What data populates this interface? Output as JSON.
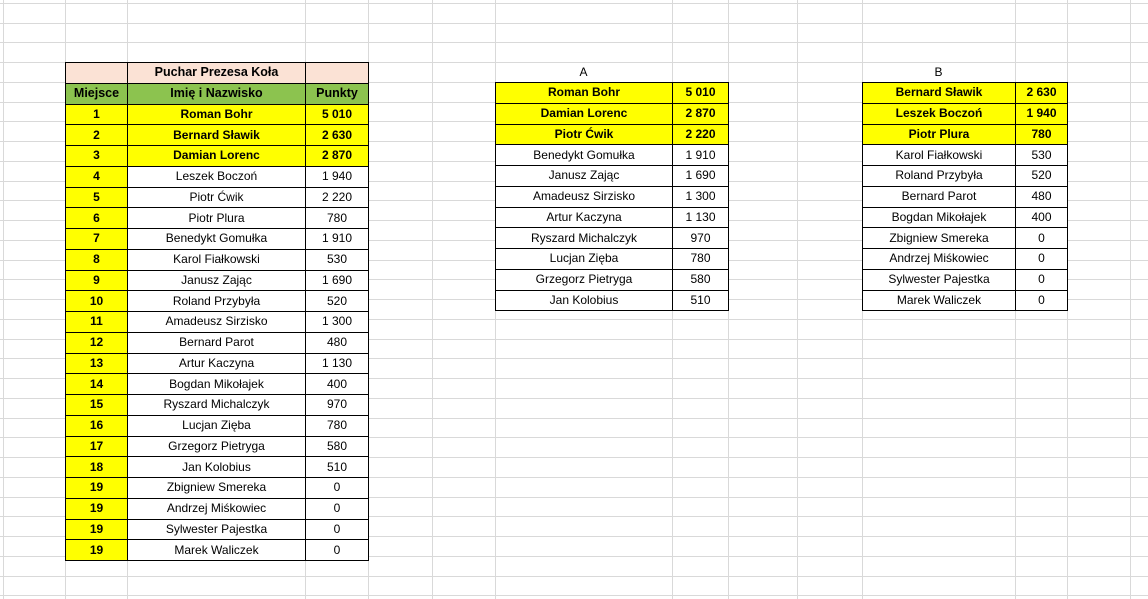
{
  "main_table": {
    "title": "Puchar Prezesa Koła",
    "columns": [
      "Miejsce",
      "Imię i Nazwisko",
      "Punkty"
    ],
    "rows": [
      {
        "place": "1",
        "name": "Roman Bohr",
        "points": "5 010",
        "highlight": true
      },
      {
        "place": "2",
        "name": "Bernard Sławik",
        "points": "2 630",
        "highlight": true
      },
      {
        "place": "3",
        "name": "Damian Lorenc",
        "points": "2 870",
        "highlight": true
      },
      {
        "place": "4",
        "name": "Leszek Boczoń",
        "points": "1 940",
        "highlight": false
      },
      {
        "place": "5",
        "name": "Piotr Ćwik",
        "points": "2 220",
        "highlight": false
      },
      {
        "place": "6",
        "name": "Piotr Plura",
        "points": "780",
        "highlight": false
      },
      {
        "place": "7",
        "name": "Benedykt Gomułka",
        "points": "1 910",
        "highlight": false
      },
      {
        "place": "8",
        "name": "Karol Fiałkowski",
        "points": "530",
        "highlight": false
      },
      {
        "place": "9",
        "name": "Janusz Zając",
        "points": "1 690",
        "highlight": false
      },
      {
        "place": "10",
        "name": "Roland Przybyła",
        "points": "520",
        "highlight": false
      },
      {
        "place": "11",
        "name": "Amadeusz Sirzisko",
        "points": "1 300",
        "highlight": false
      },
      {
        "place": "12",
        "name": "Bernard Parot",
        "points": "480",
        "highlight": false
      },
      {
        "place": "13",
        "name": "Artur Kaczyna",
        "points": "1 130",
        "highlight": false
      },
      {
        "place": "14",
        "name": "Bogdan Mikołajek",
        "points": "400",
        "highlight": false
      },
      {
        "place": "15",
        "name": "Ryszard Michalczyk",
        "points": "970",
        "highlight": false
      },
      {
        "place": "16",
        "name": "Lucjan Zięba",
        "points": "780",
        "highlight": false
      },
      {
        "place": "17",
        "name": "Grzegorz Pietryga",
        "points": "580",
        "highlight": false
      },
      {
        "place": "18",
        "name": "Jan Kolobius",
        "points": "510",
        "highlight": false
      },
      {
        "place": "19",
        "name": "Zbigniew Smereka",
        "points": "0",
        "highlight": false
      },
      {
        "place": "19",
        "name": "Andrzej Miśkowiec",
        "points": "0",
        "highlight": false
      },
      {
        "place": "19",
        "name": "Sylwester Pajestka",
        "points": "0",
        "highlight": false
      },
      {
        "place": "19",
        "name": "Marek Waliczek",
        "points": "0",
        "highlight": false
      }
    ]
  },
  "group_a": {
    "label": "A",
    "rows": [
      {
        "name": "Roman Bohr",
        "points": "5 010",
        "highlight": true
      },
      {
        "name": "Damian Lorenc",
        "points": "2 870",
        "highlight": true
      },
      {
        "name": "Piotr Ćwik",
        "points": "2 220",
        "highlight": true
      },
      {
        "name": "Benedykt Gomułka",
        "points": "1 910",
        "highlight": false
      },
      {
        "name": "Janusz Zając",
        "points": "1 690",
        "highlight": false
      },
      {
        "name": "Amadeusz Sirzisko",
        "points": "1 300",
        "highlight": false
      },
      {
        "name": "Artur Kaczyna",
        "points": "1 130",
        "highlight": false
      },
      {
        "name": "Ryszard Michalczyk",
        "points": "970",
        "highlight": false
      },
      {
        "name": "Lucjan Zięba",
        "points": "780",
        "highlight": false
      },
      {
        "name": "Grzegorz Pietryga",
        "points": "580",
        "highlight": false
      },
      {
        "name": "Jan Kolobius",
        "points": "510",
        "highlight": false
      }
    ]
  },
  "group_b": {
    "label": "B",
    "rows": [
      {
        "name": "Bernard Sławik",
        "points": "2 630",
        "highlight": true
      },
      {
        "name": "Leszek Boczoń",
        "points": "1 940",
        "highlight": true
      },
      {
        "name": "Piotr Plura",
        "points": "780",
        "highlight": true
      },
      {
        "name": "Karol Fiałkowski",
        "points": "530",
        "highlight": false
      },
      {
        "name": "Roland Przybyła",
        "points": "520",
        "highlight": false
      },
      {
        "name": "Bernard Parot",
        "points": "480",
        "highlight": false
      },
      {
        "name": "Bogdan Mikołajek",
        "points": "400",
        "highlight": false
      },
      {
        "name": "Zbigniew Smereka",
        "points": "0",
        "highlight": false
      },
      {
        "name": "Andrzej Miśkowiec",
        "points": "0",
        "highlight": false
      },
      {
        "name": "Sylwester Pajestka",
        "points": "0",
        "highlight": false
      },
      {
        "name": "Marek Waliczek",
        "points": "0",
        "highlight": false
      }
    ]
  },
  "colors": {
    "title_bg": "#FBE2D5",
    "header_bg": "#8CC34F",
    "highlight_bg": "#FFFF00",
    "border": "#000000",
    "grid_line": "#D9D9D9",
    "text": "#000000"
  }
}
